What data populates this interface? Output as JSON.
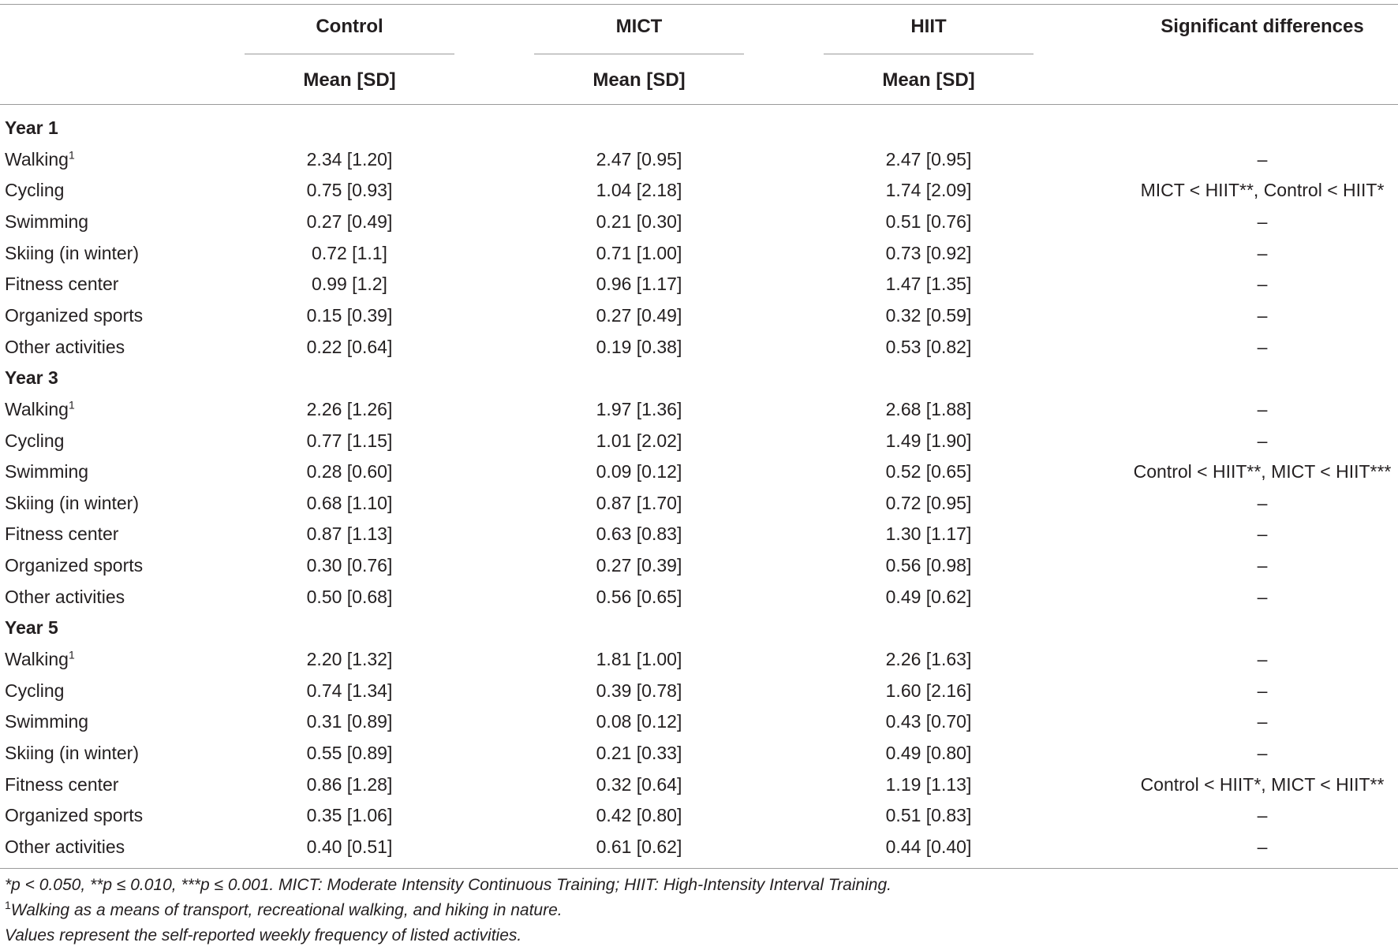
{
  "header": {
    "columns": [
      "Control",
      "MICT",
      "HIIT",
      "Significant differences"
    ],
    "sub": "Mean [SD]"
  },
  "groups": [
    {
      "label": "Year 1",
      "rows": [
        {
          "activity": "Walking",
          "sup": "1",
          "control": "2.34 [1.20]",
          "mict": "2.47 [0.95]",
          "hiit": "2.47 [0.95]",
          "sig": "–"
        },
        {
          "activity": "Cycling",
          "sup": "",
          "control": "0.75 [0.93]",
          "mict": "1.04 [2.18]",
          "hiit": "1.74 [2.09]",
          "sig": "MICT < HIIT**, Control < HIIT*"
        },
        {
          "activity": "Swimming",
          "sup": "",
          "control": "0.27 [0.49]",
          "mict": "0.21 [0.30]",
          "hiit": "0.51 [0.76]",
          "sig": "–"
        },
        {
          "activity": "Skiing (in winter)",
          "sup": "",
          "control": "0.72 [1.1]",
          "mict": "0.71 [1.00]",
          "hiit": "0.73 [0.92]",
          "sig": "–"
        },
        {
          "activity": "Fitness center",
          "sup": "",
          "control": "0.99 [1.2]",
          "mict": "0.96 [1.17]",
          "hiit": "1.47 [1.35]",
          "sig": "–"
        },
        {
          "activity": "Organized sports",
          "sup": "",
          "control": "0.15 [0.39]",
          "mict": "0.27 [0.49]",
          "hiit": "0.32 [0.59]",
          "sig": "–"
        },
        {
          "activity": "Other activities",
          "sup": "",
          "control": "0.22 [0.64]",
          "mict": "0.19 [0.38]",
          "hiit": "0.53 [0.82]",
          "sig": "–"
        }
      ]
    },
    {
      "label": "Year 3",
      "rows": [
        {
          "activity": "Walking",
          "sup": "1",
          "control": "2.26 [1.26]",
          "mict": "1.97 [1.36]",
          "hiit": "2.68 [1.88]",
          "sig": "–"
        },
        {
          "activity": "Cycling",
          "sup": "",
          "control": "0.77 [1.15]",
          "mict": "1.01 [2.02]",
          "hiit": "1.49 [1.90]",
          "sig": "–"
        },
        {
          "activity": "Swimming",
          "sup": "",
          "control": "0.28 [0.60]",
          "mict": "0.09 [0.12]",
          "hiit": "0.52 [0.65]",
          "sig": "Control < HIIT**, MICT < HIIT***"
        },
        {
          "activity": "Skiing (in winter)",
          "sup": "",
          "control": "0.68 [1.10]",
          "mict": "0.87 [1.70]",
          "hiit": "0.72 [0.95]",
          "sig": "–"
        },
        {
          "activity": "Fitness center",
          "sup": "",
          "control": "0.87 [1.13]",
          "mict": "0.63 [0.83]",
          "hiit": "1.30 [1.17]",
          "sig": "–"
        },
        {
          "activity": "Organized sports",
          "sup": "",
          "control": "0.30 [0.76]",
          "mict": "0.27 [0.39]",
          "hiit": "0.56 [0.98]",
          "sig": "–"
        },
        {
          "activity": "Other activities",
          "sup": "",
          "control": "0.50 [0.68]",
          "mict": "0.56 [0.65]",
          "hiit": "0.49 [0.62]",
          "sig": "–"
        }
      ]
    },
    {
      "label": "Year 5",
      "rows": [
        {
          "activity": "Walking",
          "sup": "1",
          "control": "2.20 [1.32]",
          "mict": "1.81 [1.00]",
          "hiit": "2.26 [1.63]",
          "sig": "–"
        },
        {
          "activity": "Cycling",
          "sup": "",
          "control": "0.74 [1.34]",
          "mict": "0.39 [0.78]",
          "hiit": "1.60 [2.16]",
          "sig": "–"
        },
        {
          "activity": "Swimming",
          "sup": "",
          "control": "0.31 [0.89]",
          "mict": "0.08 [0.12]",
          "hiit": "0.43 [0.70]",
          "sig": "–"
        },
        {
          "activity": "Skiing (in winter)",
          "sup": "",
          "control": "0.55 [0.89]",
          "mict": "0.21 [0.33]",
          "hiit": "0.49 [0.80]",
          "sig": "–"
        },
        {
          "activity": "Fitness center",
          "sup": "",
          "control": "0.86 [1.28]",
          "mict": "0.32 [0.64]",
          "hiit": "1.19 [1.13]",
          "sig": "Control < HIIT*, MICT < HIIT**"
        },
        {
          "activity": "Organized sports",
          "sup": "",
          "control": "0.35 [1.06]",
          "mict": "0.42 [0.80]",
          "hiit": "0.51 [0.83]",
          "sig": "–"
        },
        {
          "activity": "Other activities",
          "sup": "",
          "control": "0.40 [0.51]",
          "mict": "0.61 [0.62]",
          "hiit": "0.44 [0.40]",
          "sig": "–"
        }
      ]
    }
  ],
  "footnotes": {
    "line1": "*p < 0.050, **p ≤ 0.010, ***p ≤ 0.001. MICT: Moderate Intensity Continuous Training; HIIT: High-Intensity Interval Training.",
    "line2_sup": "1",
    "line2": "Walking as a means of transport, recreational walking, and hiking in nature.",
    "line3": "Values represent the self-reported weekly frequency of listed activities."
  }
}
